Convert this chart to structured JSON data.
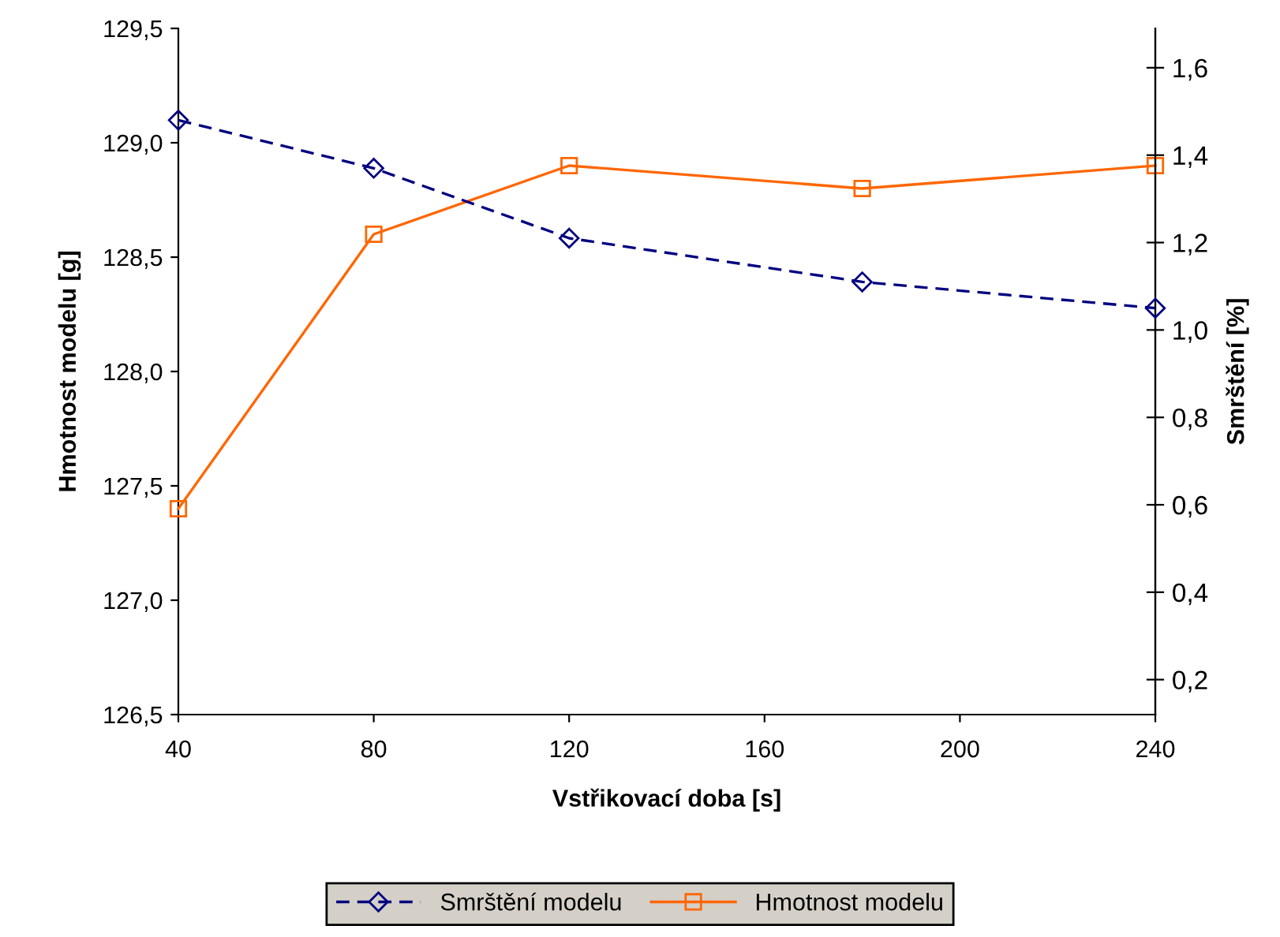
{
  "chart_data": {
    "type": "line",
    "xlabel": "Vstřikovací doba [s]",
    "ylabel": "Hmotnost modelu [g]",
    "y2label": "Smrštění [%]",
    "x": [
      40,
      80,
      120,
      180,
      240
    ],
    "series": [
      {
        "name": "Smrštění modelu",
        "color": "#000080",
        "axis": "y2",
        "marker": "diamond",
        "line_style": "dashed",
        "values": [
          1.48,
          1.37,
          1.21,
          1.11,
          1.05
        ]
      },
      {
        "name": "Hmotnost modelu",
        "color": "#ff6600",
        "marker": "square",
        "line_style": "solid",
        "values": [
          127.4,
          128.6,
          128.9,
          128.8,
          128.9
        ]
      }
    ],
    "xlim": [
      40,
      240
    ],
    "xticks": [
      40,
      80,
      120,
      160,
      200,
      240
    ],
    "ylim": [
      126.5,
      129.5
    ],
    "yticks": [
      {
        "value": 126.5,
        "label": "126,5"
      },
      {
        "value": 127,
        "label": "127,0"
      },
      {
        "value": 127.5,
        "label": "127,5"
      },
      {
        "value": 128,
        "label": "128,0"
      },
      {
        "value": 128.5,
        "label": "128,5"
      },
      {
        "value": 129,
        "label": "129,0"
      },
      {
        "value": 129.5,
        "label": "129,5"
      }
    ],
    "y2lim": [
      0.12,
      1.69
    ],
    "y2ticks": [
      {
        "value": 0.2,
        "label": "0,2"
      },
      {
        "value": 0.4,
        "label": "0,4"
      },
      {
        "value": 0.6,
        "label": "0,6"
      },
      {
        "value": 0.8,
        "label": "0,8"
      },
      {
        "value": 1.0,
        "label": "1,0"
      },
      {
        "value": 1.2,
        "label": "1,2"
      },
      {
        "value": 1.4,
        "label": "1,4"
      },
      {
        "value": 1.6,
        "label": "1,6"
      }
    ],
    "grid": false,
    "legend": "bottom"
  }
}
